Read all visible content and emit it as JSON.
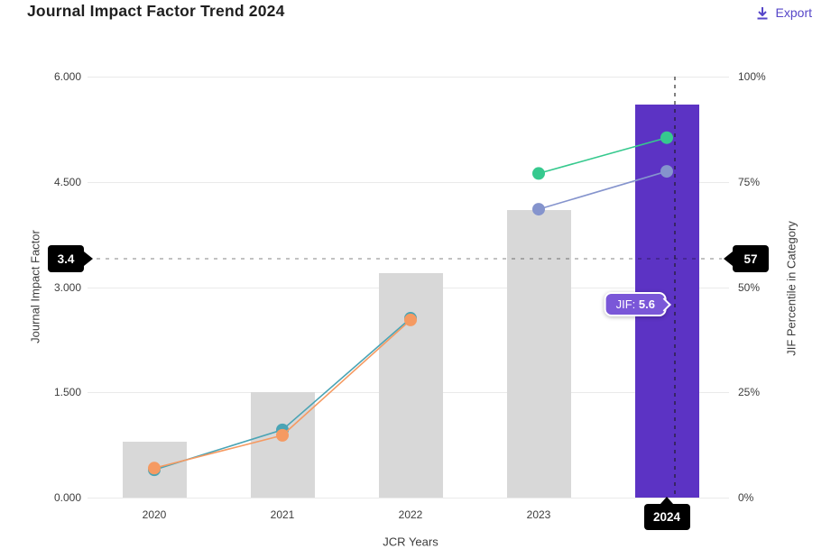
{
  "header": {
    "title": "Journal Impact Factor Trend 2024",
    "export_label": "Export"
  },
  "chart_data": {
    "type": "bar+line combo",
    "title": "Journal Impact Factor Trend 2024",
    "categories": [
      "2020",
      "2021",
      "2022",
      "2023",
      "2024"
    ],
    "x_axis": {
      "title": "JCR Years"
    },
    "left_axis": {
      "title": "Journal Impact Factor",
      "min": 0,
      "max": 6,
      "ticks": [
        {
          "label": "0.000",
          "value": 0
        },
        {
          "label": "1.500",
          "value": 1.5
        },
        {
          "label": "3.000",
          "value": 3
        },
        {
          "label": "4.500",
          "value": 4.5
        },
        {
          "label": "6.000",
          "value": 6
        }
      ]
    },
    "right_axis": {
      "title": "JIF Percentile in Category",
      "min": 0,
      "max": 100,
      "ticks": [
        {
          "label": "0%",
          "value": 0
        },
        {
          "label": "25%",
          "value": 25
        },
        {
          "label": "50%",
          "value": 50
        },
        {
          "label": "75%",
          "value": 75
        },
        {
          "label": "100%",
          "value": 100
        }
      ]
    },
    "bars": {
      "name": "Journal Impact Factor (bars)",
      "axis": "left",
      "values": [
        0.8,
        1.5,
        3.2,
        4.1,
        5.6
      ],
      "default_color": "#d8d8d8",
      "highlight_color": "#5c33c4",
      "highlight_category": "2024"
    },
    "series": [
      {
        "name": "JIF percentile - category line (teal)",
        "axis": "right",
        "color": "#4aa4b5",
        "points": [
          {
            "year": "2020",
            "value": 6.6
          },
          {
            "year": "2021",
            "value": 16.1
          },
          {
            "year": "2022",
            "value": 42.6
          }
        ]
      },
      {
        "name": "JIF percentile - category line (orange)",
        "axis": "right",
        "color": "#f59a62",
        "points": [
          {
            "year": "2020",
            "value": 7.0
          },
          {
            "year": "2021",
            "value": 14.8
          },
          {
            "year": "2022",
            "value": 42.2
          }
        ]
      },
      {
        "name": "JIF percentile - category line (green)",
        "axis": "right",
        "color": "#36c98e",
        "points": [
          {
            "year": "2023",
            "value": 77.0
          },
          {
            "year": "2024",
            "value": 85.5
          }
        ]
      },
      {
        "name": "JIF percentile - category line (slate)",
        "axis": "right",
        "color": "#8594cd",
        "points": [
          {
            "year": "2023",
            "value": 68.5
          },
          {
            "year": "2024",
            "value": 77.5
          }
        ]
      }
    ],
    "grid": true,
    "legend_position": "none"
  },
  "crosshair": {
    "year": "2024",
    "left_label": "3.4",
    "left_value": 3.4,
    "right_label": "57",
    "bottom_label": "2024"
  },
  "tooltip": {
    "label": "JIF:",
    "value": "5.6"
  },
  "colors": {
    "accent_purple": "#5c33c4",
    "link_purple": "#5646c8",
    "bar_gray": "#d8d8d8",
    "tooltip_bg": "#7a57d8",
    "tag_bg": "#000000"
  }
}
